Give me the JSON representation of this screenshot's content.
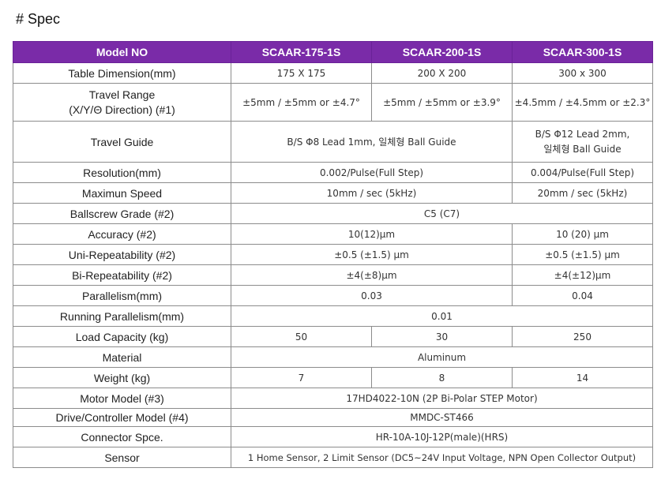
{
  "heading": "# Spec",
  "header": {
    "model_no": "Model NO",
    "models": [
      "SCAAR-175-1S",
      "SCAAR-200-1S",
      "SCAAR-300-1S"
    ]
  },
  "rows": {
    "table_dimension": {
      "label": "Table Dimension(mm)",
      "v175": "175 X 175",
      "v200": "200 X 200",
      "v300": "300 x 300"
    },
    "travel_range": {
      "label1": "Travel Range",
      "label2": "(X/Y/Θ Direction) (#1)",
      "v175": "±5mm / ±5mm or ±4.7°",
      "v200": "±5mm / ±5mm or ±3.9°",
      "v300": "±4.5mm / ±4.5mm or ±2.3°"
    },
    "travel_guide": {
      "label": "Travel Guide",
      "v175_200": "B/S Φ8 Lead 1mm, 일체형 Ball Guide",
      "v300_line1": "B/S Φ12 Lead 2mm,",
      "v300_line2": "일체형 Ball Guide"
    },
    "resolution": {
      "label": "Resolution(mm)",
      "v175_200": "0.002/Pulse(Full Step)",
      "v300": "0.004/Pulse(Full Step)"
    },
    "max_speed": {
      "label": "Maximun Speed",
      "v175_200": "10mm / sec (5kHz)",
      "v300": "20mm / sec (5kHz)"
    },
    "ballscrew": {
      "label": "Ballscrew Grade (#2)",
      "all": "C5 (C7)"
    },
    "accuracy": {
      "label": "Accuracy (#2)",
      "v175_200": "10(12)μm",
      "v300": "10 (20) μm"
    },
    "uni_rep": {
      "label": "Uni-Repeatability (#2)",
      "v175_200": "±0.5 (±1.5) μm",
      "v300": "±0.5 (±1.5) μm"
    },
    "bi_rep": {
      "label": "Bi-Repeatability (#2)",
      "v175_200": "±4(±8)μm",
      "v300": "±4(±12)μm"
    },
    "parallelism": {
      "label": "Parallelism(mm)",
      "v175_200": "0.03",
      "v300": "0.04"
    },
    "running_par": {
      "label": "Running Parallelism(mm)",
      "all": "0.01"
    },
    "load_capacity": {
      "label": "Load Capacity (kg)",
      "v175": "50",
      "v200": "30",
      "v300": "250"
    },
    "material": {
      "label": "Material",
      "all": "Aluminum"
    },
    "weight": {
      "label": "Weight (kg)",
      "v175": "7",
      "v200": "8",
      "v300": "14"
    },
    "motor": {
      "label": "Motor Model (#3)",
      "all": "17HD4022-10N (2P Bi-Polar STEP Motor)"
    },
    "drive": {
      "label": "Drive/Controller Model (#4)",
      "all": "MMDC-ST466"
    },
    "connector": {
      "label": "Connector Spce.",
      "all": "HR-10A-10J-12P(male)(HRS)"
    },
    "sensor": {
      "label": "Sensor",
      "all": "1 Home Sensor, 2 Limit Sensor (DC5~24V Input Voltage, NPN Open Collector Output)"
    }
  }
}
